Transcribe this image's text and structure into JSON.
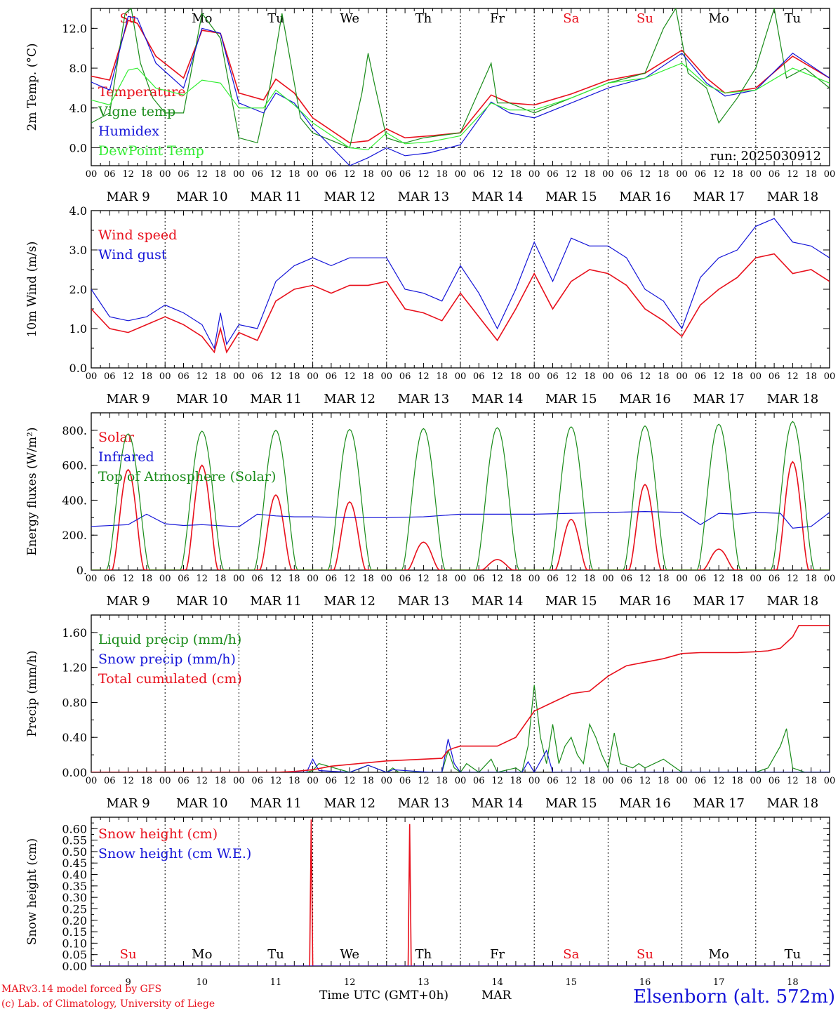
{
  "colors": {
    "red": "#e8101c",
    "green": "#1a8c1a",
    "blue": "#1414d8",
    "lightgreen": "#33ee33",
    "axis": "#000000"
  },
  "x_axis": {
    "hour_ticks": [
      "00",
      "06",
      "12",
      "18"
    ],
    "final_tick": "00",
    "date_labels": [
      "MAR  9",
      "MAR 10",
      "MAR 11",
      "MAR 12",
      "MAR 13",
      "MAR 14",
      "MAR 15",
      "MAR 16",
      "MAR 17",
      "MAR 18"
    ],
    "day_abbrevs": [
      {
        "text": "Su",
        "weekend": true
      },
      {
        "text": "Mo",
        "weekend": false
      },
      {
        "text": "Tu",
        "weekend": false
      },
      {
        "text": "We",
        "weekend": false
      },
      {
        "text": "Th",
        "weekend": false
      },
      {
        "text": "Fr",
        "weekend": false
      },
      {
        "text": "Sa",
        "weekend": true
      },
      {
        "text": "Su",
        "weekend": true
      },
      {
        "text": "Mo",
        "weekend": false
      },
      {
        "text": "Tu",
        "weekend": false
      }
    ],
    "day_numbers": [
      "9",
      "10",
      "11",
      "12",
      "13",
      "14",
      "15",
      "16",
      "17",
      "18"
    ]
  },
  "footer": {
    "model_line": "MARv3.14 model forced by GFS",
    "lab_line": "(c) Lab. of Climatology, University of Liege",
    "time_label": "Time UTC (GMT+0h)",
    "month_label": "MAR",
    "station": "Elsenborn (alt. 572m)"
  },
  "chart_data": [
    {
      "type": "line",
      "ylabel": "2m Temp. (°C)",
      "ylim": [
        -1.8,
        14.0
      ],
      "yticks": [
        0.0,
        4.0,
        8.0,
        12.0
      ],
      "ytick_labels": [
        "0.0",
        "4.0",
        "8.0",
        "12.0"
      ],
      "zero_line": true,
      "annotation": "run: 2025030912",
      "x_unit": "hours since MAR 9 00 UTC",
      "series": [
        {
          "name": "Temperature",
          "color": "red",
          "x": [
            0,
            6,
            12,
            15,
            21,
            30,
            36,
            42,
            48,
            56,
            60,
            66,
            72,
            84,
            90,
            96,
            102,
            110,
            120,
            130,
            136,
            144,
            156,
            168,
            180,
            192,
            200,
            206,
            216,
            228,
            240
          ],
          "y": [
            7.2,
            6.8,
            12.8,
            12.5,
            9.2,
            7.0,
            11.8,
            11.5,
            5.5,
            4.8,
            6.9,
            5.5,
            3.0,
            0.5,
            0.7,
            1.9,
            1.0,
            1.2,
            1.5,
            5.3,
            4.5,
            4.3,
            5.4,
            6.8,
            7.5,
            9.8,
            7.0,
            5.5,
            6.0,
            9.2,
            7.0
          ]
        },
        {
          "name": "Vigne temp",
          "color": "green",
          "x": [
            0,
            6,
            11,
            13,
            16,
            20,
            24,
            30,
            36,
            42,
            48,
            54,
            58,
            62,
            68,
            72,
            84,
            88,
            90,
            92,
            96,
            100,
            102,
            108,
            120,
            130,
            132,
            136,
            144,
            156,
            168,
            180,
            186,
            190,
            194,
            200,
            204,
            210,
            216,
            222,
            226,
            232,
            240
          ],
          "y": [
            2.5,
            3.5,
            13.5,
            14.0,
            8.5,
            5.0,
            3.5,
            3.5,
            13.5,
            11.0,
            1.0,
            0.5,
            6.0,
            13.5,
            3.0,
            1.5,
            0.0,
            5.5,
            9.5,
            6.5,
            1.0,
            0.6,
            0.5,
            1.0,
            1.5,
            8.5,
            4.5,
            4.5,
            3.5,
            5.0,
            6.5,
            7.5,
            12.0,
            14.0,
            7.5,
            6.0,
            2.5,
            5.0,
            8.0,
            14.0,
            7.0,
            8.0,
            6.0
          ]
        },
        {
          "name": "Humidex",
          "color": "blue",
          "x": [
            0,
            6,
            12,
            15,
            21,
            30,
            36,
            42,
            48,
            56,
            60,
            66,
            72,
            84,
            90,
            96,
            102,
            110,
            120,
            130,
            136,
            144,
            156,
            168,
            180,
            192,
            200,
            206,
            216,
            228,
            240
          ],
          "y": [
            6.6,
            5.8,
            13.2,
            13.0,
            8.5,
            6.0,
            12.0,
            11.5,
            4.5,
            3.5,
            5.5,
            4.5,
            2.0,
            -1.8,
            -1.0,
            0.0,
            -0.8,
            -0.5,
            0.3,
            4.6,
            3.5,
            3.0,
            4.5,
            6.0,
            7.0,
            9.5,
            6.5,
            5.2,
            5.8,
            9.5,
            7.0
          ]
        },
        {
          "name": "DewPoint Temp",
          "color": "lightgreen",
          "x": [
            0,
            6,
            12,
            15,
            21,
            30,
            36,
            42,
            48,
            56,
            60,
            66,
            72,
            84,
            90,
            96,
            102,
            110,
            120,
            130,
            136,
            144,
            156,
            168,
            180,
            192,
            200,
            206,
            216,
            228,
            240
          ],
          "y": [
            4.8,
            4.3,
            7.8,
            8.0,
            6.0,
            5.3,
            6.8,
            6.5,
            4.0,
            4.0,
            5.8,
            4.3,
            2.5,
            0.0,
            -0.2,
            1.5,
            0.4,
            0.6,
            1.2,
            4.5,
            3.8,
            3.8,
            5.0,
            6.5,
            7.0,
            8.5,
            6.3,
            5.5,
            5.8,
            8.0,
            6.5
          ]
        }
      ]
    },
    {
      "type": "line",
      "ylabel": "10m Wind (m/s)",
      "ylim": [
        0.0,
        4.0
      ],
      "yticks": [
        0.0,
        1.0,
        2.0,
        3.0,
        4.0
      ],
      "ytick_labels": [
        "0.0",
        "1.0",
        "2.0",
        "3.0",
        "4.0"
      ],
      "x_unit": "hours since MAR 9 00 UTC",
      "series": [
        {
          "name": "Wind speed",
          "color": "red",
          "x": [
            0,
            6,
            12,
            18,
            24,
            30,
            36,
            40,
            42,
            44,
            48,
            54,
            60,
            66,
            72,
            78,
            84,
            90,
            96,
            102,
            108,
            114,
            120,
            126,
            132,
            138,
            144,
            150,
            156,
            162,
            168,
            174,
            180,
            186,
            192,
            198,
            204,
            210,
            216,
            222,
            228,
            234,
            240
          ],
          "y": [
            1.5,
            1.0,
            0.9,
            1.1,
            1.3,
            1.1,
            0.8,
            0.4,
            1.0,
            0.4,
            0.9,
            0.7,
            1.7,
            2.0,
            2.1,
            1.9,
            2.1,
            2.1,
            2.2,
            1.5,
            1.4,
            1.2,
            1.9,
            1.3,
            0.7,
            1.5,
            2.4,
            1.5,
            2.2,
            2.5,
            2.4,
            2.1,
            1.5,
            1.2,
            0.8,
            1.6,
            2.0,
            2.3,
            2.8,
            2.9,
            2.4,
            2.5,
            2.2
          ]
        },
        {
          "name": "Wind gust",
          "color": "blue",
          "x": [
            0,
            6,
            12,
            18,
            24,
            30,
            36,
            40,
            42,
            44,
            48,
            54,
            60,
            66,
            72,
            78,
            84,
            90,
            96,
            102,
            108,
            114,
            120,
            126,
            132,
            138,
            144,
            150,
            156,
            162,
            168,
            174,
            180,
            186,
            192,
            198,
            204,
            210,
            216,
            222,
            228,
            234,
            240
          ],
          "y": [
            2.0,
            1.3,
            1.2,
            1.3,
            1.6,
            1.4,
            1.1,
            0.5,
            1.4,
            0.6,
            1.1,
            1.0,
            2.2,
            2.6,
            2.8,
            2.6,
            2.8,
            2.8,
            2.8,
            2.0,
            1.9,
            1.7,
            2.6,
            1.9,
            1.0,
            2.0,
            3.2,
            2.2,
            3.3,
            3.1,
            3.1,
            2.8,
            2.0,
            1.7,
            1.0,
            2.3,
            2.8,
            3.0,
            3.6,
            3.8,
            3.2,
            3.1,
            2.8
          ]
        }
      ]
    },
    {
      "type": "line",
      "ylabel": "Energy fluxes (W/m²)",
      "ylim": [
        0,
        900
      ],
      "yticks": [
        0,
        200,
        400,
        600,
        800
      ],
      "ytick_labels": [
        "0.",
        "200.",
        "400.",
        "600.",
        "800."
      ],
      "x_unit": "hours since MAR 9 00 UTC",
      "series": [
        {
          "name": "Solar",
          "color": "red",
          "daily_peak": [
            575,
            600,
            430,
            390,
            160,
            60,
            290,
            490,
            120,
            620
          ]
        },
        {
          "name": "Infrared",
          "color": "blue",
          "x": [
            0,
            12,
            18,
            24,
            30,
            36,
            48,
            54,
            60,
            66,
            72,
            84,
            96,
            108,
            120,
            132,
            144,
            156,
            168,
            180,
            192,
            198,
            204,
            210,
            216,
            224,
            228,
            234,
            240
          ],
          "y": [
            250,
            260,
            320,
            265,
            255,
            260,
            248,
            320,
            310,
            305,
            305,
            300,
            300,
            305,
            320,
            320,
            320,
            325,
            330,
            335,
            330,
            260,
            325,
            320,
            330,
            325,
            240,
            250,
            330
          ]
        },
        {
          "name": "Top of Atmosphere (Solar)",
          "color": "green",
          "daily_peak": [
            780,
            795,
            800,
            805,
            810,
            815,
            820,
            825,
            835,
            850
          ]
        }
      ]
    },
    {
      "type": "line",
      "ylabel": "Precip (mm/h)",
      "ylim": [
        0.0,
        1.8
      ],
      "yticks": [
        0.0,
        0.4,
        0.8,
        1.2,
        1.6
      ],
      "ytick_labels": [
        "0.00",
        "0.40",
        "0.80",
        "1.20",
        "1.60"
      ],
      "x_unit": "hours since MAR 9 00 UTC",
      "series": [
        {
          "name": "Liquid precip (mm/h)",
          "color": "green",
          "x": [
            0,
            60,
            70,
            72,
            74,
            84,
            88,
            90,
            96,
            98,
            100,
            114,
            116,
            118,
            120,
            122,
            126,
            130,
            132,
            138,
            140,
            142,
            144,
            146,
            148,
            150,
            152,
            154,
            156,
            158,
            160,
            162,
            164,
            166,
            168,
            170,
            172,
            176,
            178,
            180,
            186,
            190,
            192,
            200,
            216,
            220,
            224,
            226,
            228,
            232,
            240
          ],
          "y": [
            0,
            0,
            0,
            0.02,
            0.1,
            0,
            0.05,
            0.08,
            0,
            0.05,
            0,
            0,
            0.25,
            0.05,
            0,
            0.1,
            0,
            0.15,
            0,
            0.05,
            0,
            0.3,
            1.0,
            0.4,
            0.1,
            0.55,
            0.1,
            0.3,
            0.4,
            0.2,
            0.1,
            0.55,
            0.4,
            0.2,
            0.05,
            0.45,
            0.1,
            0.05,
            0.1,
            0.05,
            0.15,
            0.05,
            0,
            0,
            0,
            0.05,
            0.3,
            0.5,
            0.05,
            0,
            0
          ]
        },
        {
          "name": "Snow precip (mm/h)",
          "color": "blue",
          "x": [
            0,
            60,
            70,
            72,
            74,
            84,
            90,
            96,
            98,
            110,
            114,
            116,
            118,
            120,
            122,
            140,
            142,
            144,
            148,
            150,
            152,
            240
          ],
          "y": [
            0,
            0,
            0,
            0.15,
            0.02,
            0,
            0.08,
            0,
            0.03,
            0,
            0,
            0.38,
            0.1,
            0,
            0,
            0,
            0.12,
            0,
            0.25,
            0,
            0,
            0
          ]
        },
        {
          "name": "Total cumulated (cm)",
          "color": "red",
          "x": [
            0,
            60,
            66,
            72,
            78,
            84,
            90,
            96,
            102,
            108,
            114,
            116,
            118,
            120,
            126,
            132,
            138,
            144,
            150,
            156,
            162,
            168,
            174,
            180,
            186,
            192,
            198,
            204,
            210,
            216,
            220,
            224,
            228,
            230,
            240
          ],
          "y": [
            0,
            0,
            0.01,
            0.03,
            0.07,
            0.09,
            0.11,
            0.13,
            0.14,
            0.15,
            0.16,
            0.25,
            0.28,
            0.3,
            0.3,
            0.3,
            0.4,
            0.7,
            0.8,
            0.9,
            0.93,
            1.1,
            1.22,
            1.26,
            1.3,
            1.36,
            1.37,
            1.37,
            1.37,
            1.38,
            1.39,
            1.42,
            1.55,
            1.68,
            1.68
          ]
        }
      ]
    },
    {
      "type": "line",
      "ylabel": "Snow height (cm)",
      "ylim": [
        0.0,
        0.65
      ],
      "yticks": [
        0.0,
        0.05,
        0.1,
        0.15,
        0.2,
        0.25,
        0.3,
        0.35,
        0.4,
        0.45,
        0.5,
        0.55,
        0.6
      ],
      "ytick_labels": [
        "0.00",
        "0.05",
        "0.10",
        "0.15",
        "0.20",
        "0.25",
        "0.30",
        "0.35",
        "0.40",
        "0.45",
        "0.50",
        "0.55",
        "0.60"
      ],
      "x_unit": "hours since MAR 9 00 UTC",
      "series": [
        {
          "name": "Snow height (cm)",
          "color": "red",
          "x": [
            0,
            71,
            71.5,
            72,
            103,
            103.5,
            104,
            240
          ],
          "y": [
            0,
            0,
            0.64,
            0,
            0,
            0.62,
            0,
            0
          ]
        },
        {
          "name": "Snow height (cm W.E.)",
          "color": "blue",
          "x": [
            0,
            240
          ],
          "y": [
            0,
            0
          ]
        }
      ]
    }
  ]
}
